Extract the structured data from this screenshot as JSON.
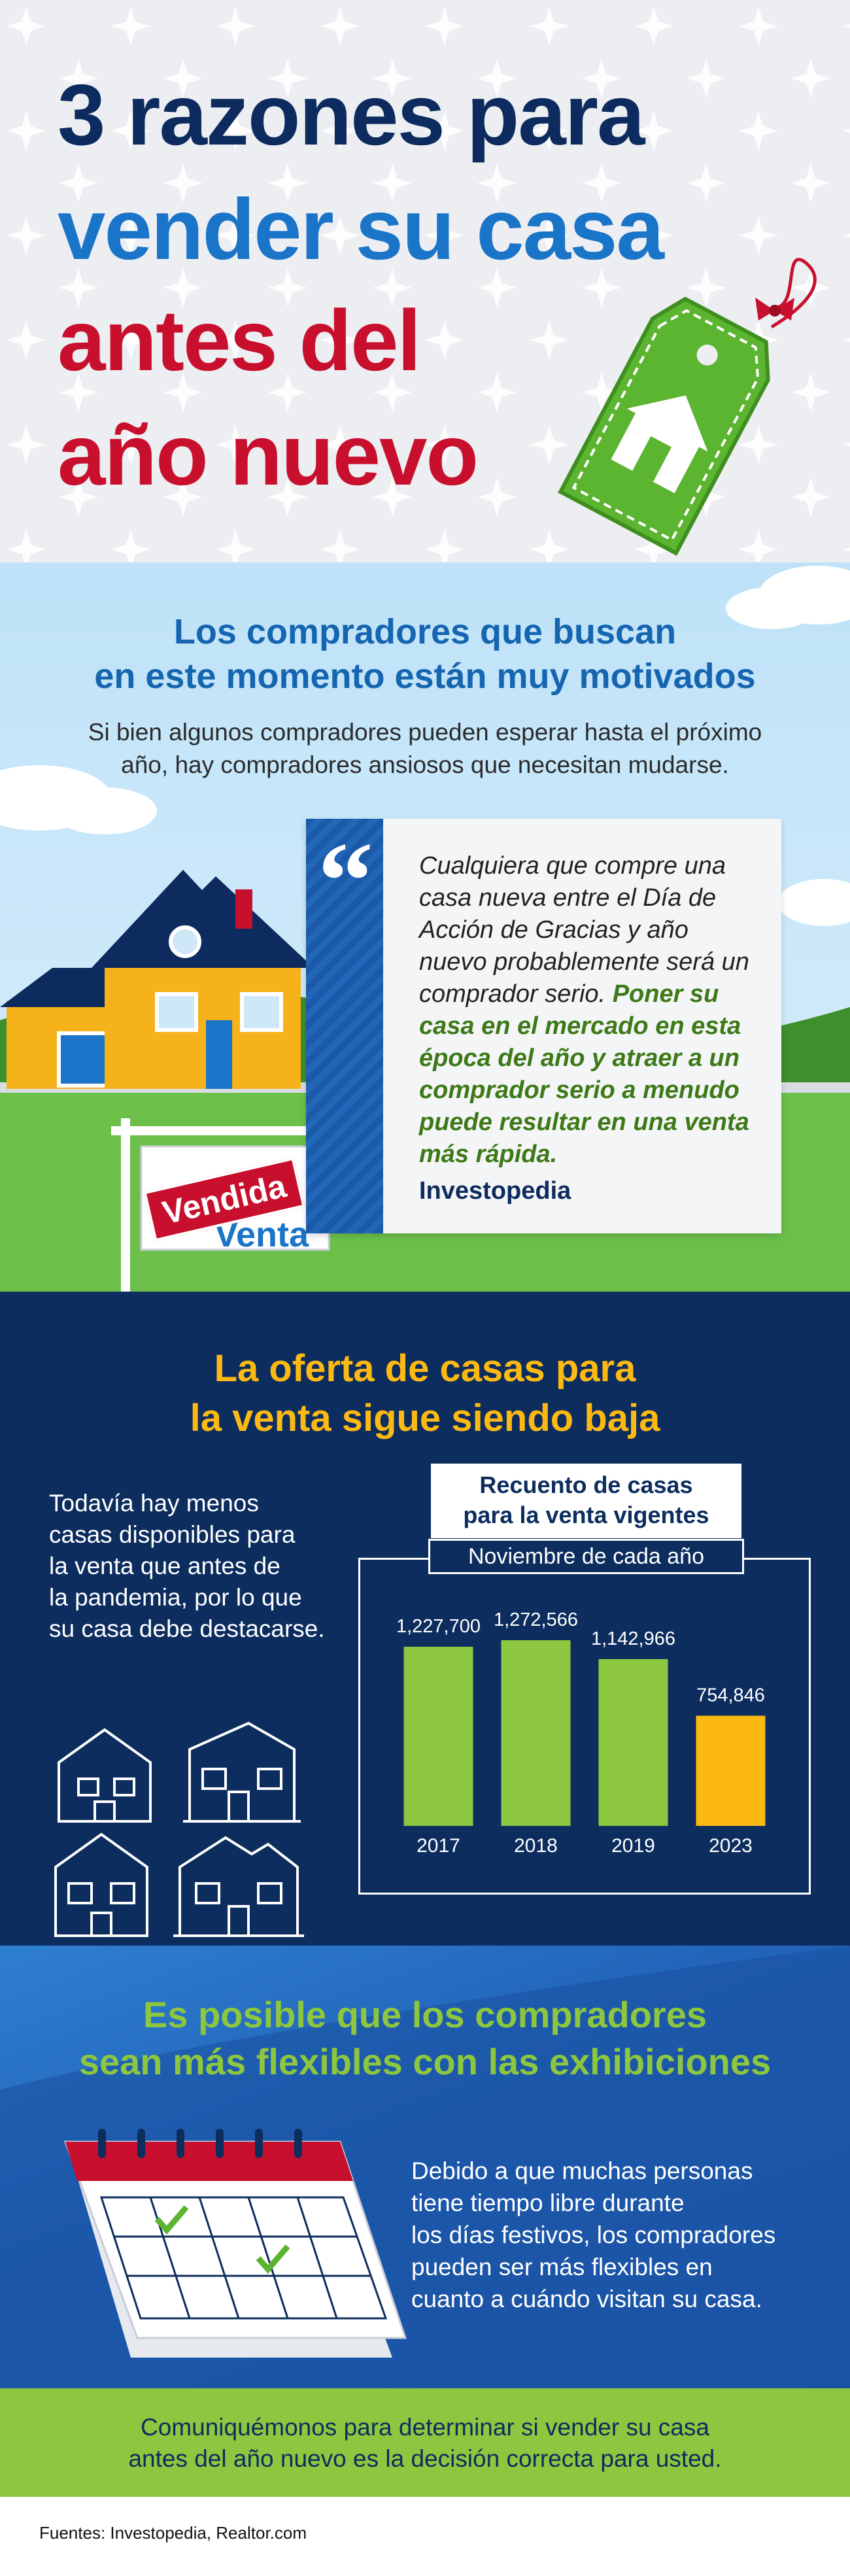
{
  "header": {
    "title": [
      "3 razones para",
      "vender su casa",
      "antes del",
      "año nuevo"
    ]
  },
  "motivated": {
    "heading": [
      "Los compradores que buscan",
      "en este momento están muy motivados"
    ],
    "body": [
      "Si bien algunos compradores pueden esperar hasta el próximo",
      "año, hay compradores ansiosos que necesitan mudarse."
    ],
    "quote": {
      "plain": "Cualquiera que compre una casa nueva entre el Día de Acción de Gracias y año nuevo probablemente será un comprador serio.",
      "emphasis": "Poner su casa en el mercado en esta época del año y atraer a un comprador serio a menudo puede resultar en una venta más rápida.",
      "source": "Investopedia"
    },
    "sign": {
      "for_sale": "En Venta",
      "sold": "Vendida"
    }
  },
  "supply": {
    "heading": [
      "La oferta de casas para",
      "la venta sigue siendo baja"
    ],
    "body": [
      "Todavía hay menos",
      "casas disponibles para",
      "la venta que antes de",
      "la pandemia, por lo que",
      "su casa debe destacarse."
    ],
    "chart": {
      "type": "bar",
      "title": [
        "Recuento de casas",
        "para la venta vigentes"
      ],
      "subtitle": "Noviembre de cada año",
      "categories": [
        "2017",
        "2018",
        "2019",
        "2023"
      ],
      "values": [
        1227700,
        1272566,
        1142966,
        754846
      ],
      "value_labels": [
        "1,227,700",
        "1,272,566",
        "1,142,966",
        "754,846"
      ],
      "colors": [
        "#8dc63f",
        "#8dc63f",
        "#8dc63f",
        "#fdb913"
      ]
    }
  },
  "flexible": {
    "heading": [
      "Es posible que los compradores",
      "sean más flexibles con las exhibiciones"
    ],
    "body": [
      "Debido a que muchas personas",
      "tiene tiempo libre durante",
      "los días festivos, los compradores",
      "pueden ser más flexibles en",
      "cuanto a cuándo visitan su casa."
    ]
  },
  "cta": [
    "Comuniquémonos para determinar si vender su casa",
    "antes del año nuevo es la decisión correcta para usted."
  ],
  "sources": "Fuentes: Investopedia, Realtor.com"
}
